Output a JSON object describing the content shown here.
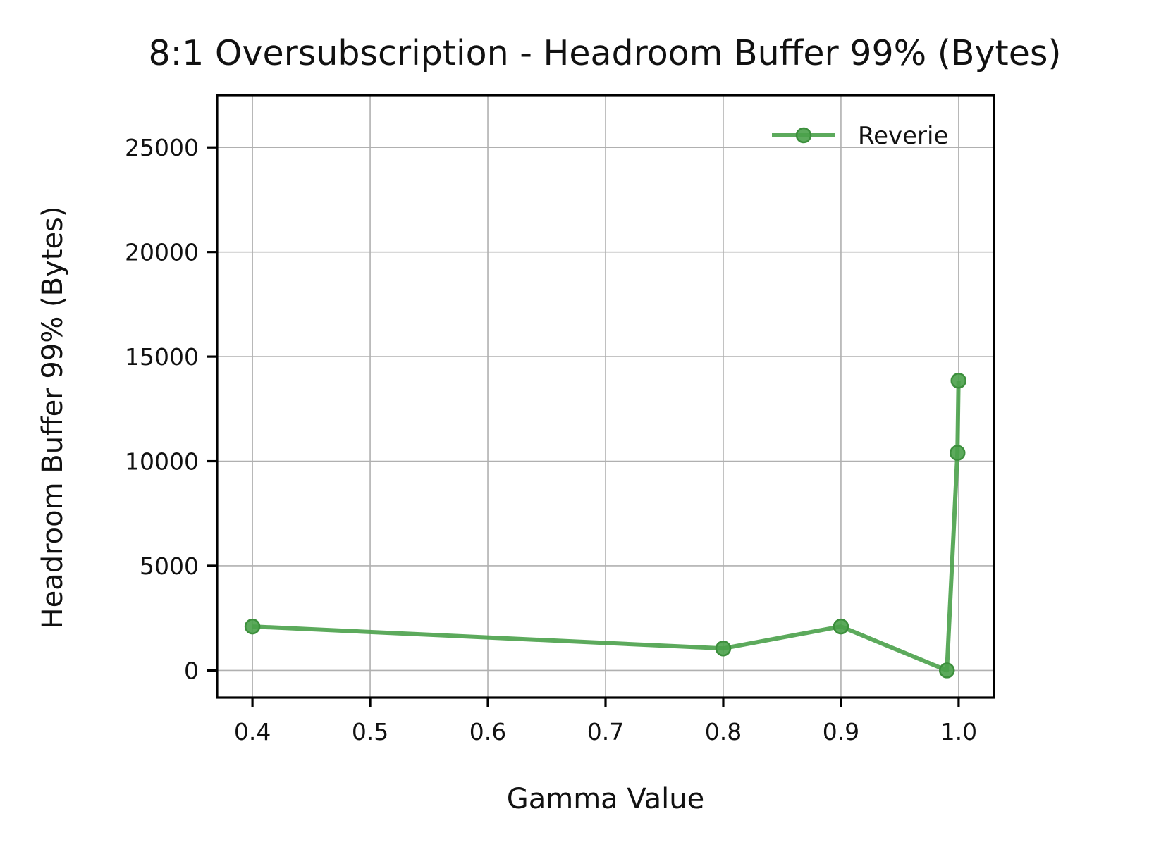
{
  "chart_data": {
    "type": "line",
    "title": "8:1 Oversubscription - Headroom Buffer 99% (Bytes)",
    "xlabel": "Gamma Value",
    "ylabel": "Headroom Buffer 99% (Bytes)",
    "xlim": [
      0.37,
      1.03
    ],
    "ylim": [
      -1300,
      27500
    ],
    "x_ticks": [
      0.4,
      0.5,
      0.6,
      0.7,
      0.8,
      0.9,
      1.0
    ],
    "x_tick_labels": [
      "0.4",
      "0.5",
      "0.6",
      "0.7",
      "0.8",
      "0.9",
      "1.0"
    ],
    "y_ticks": [
      0,
      5000,
      10000,
      15000,
      20000,
      25000
    ],
    "y_tick_labels": [
      "0",
      "5000",
      "10000",
      "15000",
      "20000",
      "25000"
    ],
    "grid": true,
    "legend_position": "top-right",
    "series": [
      {
        "name": "Reverie",
        "color": "#4aa14a",
        "marker": "circle",
        "x": [
          0.4,
          0.8,
          0.9,
          0.99,
          0.999,
          0.9999
        ],
        "y": [
          2100,
          1050,
          2100,
          0,
          10400,
          13850
        ]
      }
    ]
  }
}
